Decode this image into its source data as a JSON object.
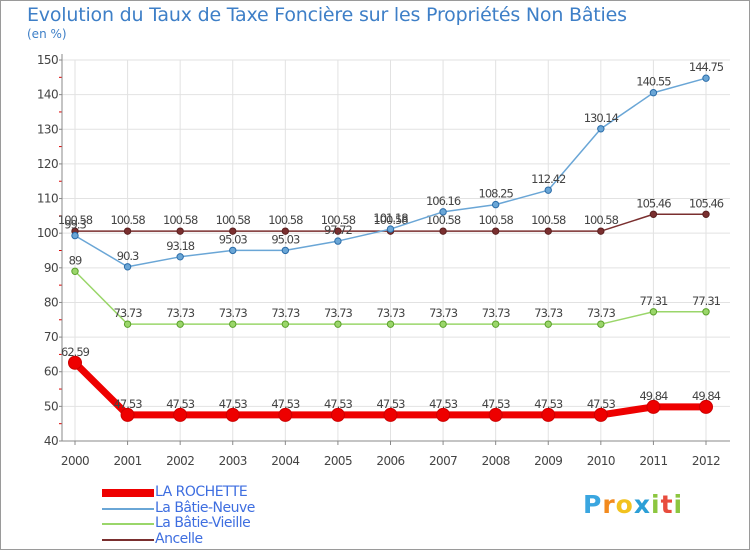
{
  "header": {
    "title": "Evolution du Taux de Taxe Foncière sur les Propriétés Non Bâties",
    "unit": "(en %)"
  },
  "logo": {
    "text": "Proxiti",
    "letters": [
      "P",
      "r",
      "o",
      "x",
      "i",
      "t",
      "i"
    ],
    "colors": [
      "#3aa6e0",
      "#f28a1e",
      "#f2c21e",
      "#2c9fd6",
      "#8cc63f",
      "#e84c3d",
      "#8cc63f"
    ]
  },
  "chart_data": {
    "type": "line",
    "title": "Evolution du Taux de Taxe Foncière sur les Propriétés Non Bâties",
    "ylabel": "(en %)",
    "xlabel": "",
    "ylim": [
      40,
      150
    ],
    "yticks": [
      "40",
      "50",
      "60",
      "70",
      "80",
      "90",
      "100",
      "110",
      "120",
      "130",
      "140",
      "150"
    ],
    "x": [
      "2000",
      "2001",
      "2002",
      "2003",
      "2004",
      "2005",
      "2006",
      "2007",
      "2008",
      "2009",
      "2010",
      "2011",
      "2012"
    ],
    "grid": true,
    "legend_position": "bottom-left",
    "series": [
      {
        "name": "Ancelle",
        "color": "#7a2f2f",
        "values": [
          100.58,
          100.58,
          100.58,
          100.58,
          100.58,
          100.58,
          100.58,
          100.58,
          100.58,
          100.58,
          100.58,
          105.46,
          105.46
        ],
        "labels": [
          "100.58",
          "100.58",
          "100.58",
          "100.58",
          "100.58",
          "100.58",
          "100.58",
          "100.58",
          "100.58",
          "100.58",
          "100.58",
          "105.46",
          "105.46"
        ]
      },
      {
        "name": "La Bâtie-Neuve",
        "color": "#6aa6d6",
        "values": [
          99.3,
          90.3,
          93.18,
          95.03,
          95.03,
          97.72,
          101.18,
          106.16,
          108.25,
          112.42,
          130.14,
          140.55,
          144.75
        ],
        "labels": [
          "99.3",
          "90.3",
          "93.18",
          "95.03",
          "95.03",
          "97.72",
          "101.18",
          "106.16",
          "108.25",
          "112.42",
          "130.14",
          "140.55",
          "144.75"
        ]
      },
      {
        "name": "La Bâtie-Vieille",
        "color": "#9ad66a",
        "values": [
          89,
          73.73,
          73.73,
          73.73,
          73.73,
          73.73,
          73.73,
          73.73,
          73.73,
          73.73,
          73.73,
          77.31,
          77.31
        ],
        "labels": [
          "89",
          "73.73",
          "73.73",
          "73.73",
          "73.73",
          "73.73",
          "73.73",
          "73.73",
          "73.73",
          "73.73",
          "73.73",
          "77.31",
          "77.31"
        ]
      },
      {
        "name": "LA ROCHETTE",
        "color": "#ee0000",
        "values": [
          62.59,
          47.53,
          47.53,
          47.53,
          47.53,
          47.53,
          47.53,
          47.53,
          47.53,
          47.53,
          47.53,
          49.84,
          49.84
        ],
        "labels": [
          "62.59",
          "47.53",
          "47.53",
          "47.53",
          "47.53",
          "47.53",
          "47.53",
          "47.53",
          "47.53",
          "47.53",
          "47.53",
          "49.84",
          "49.84"
        ]
      }
    ],
    "legend": [
      {
        "name": "LA ROCHETTE",
        "color": "#ee0000"
      },
      {
        "name": "La Bâtie-Neuve",
        "color": "#6aa6d6"
      },
      {
        "name": "La Bâtie-Vieille",
        "color": "#9ad66a"
      },
      {
        "name": "Ancelle",
        "color": "#7a2f2f"
      }
    ]
  }
}
